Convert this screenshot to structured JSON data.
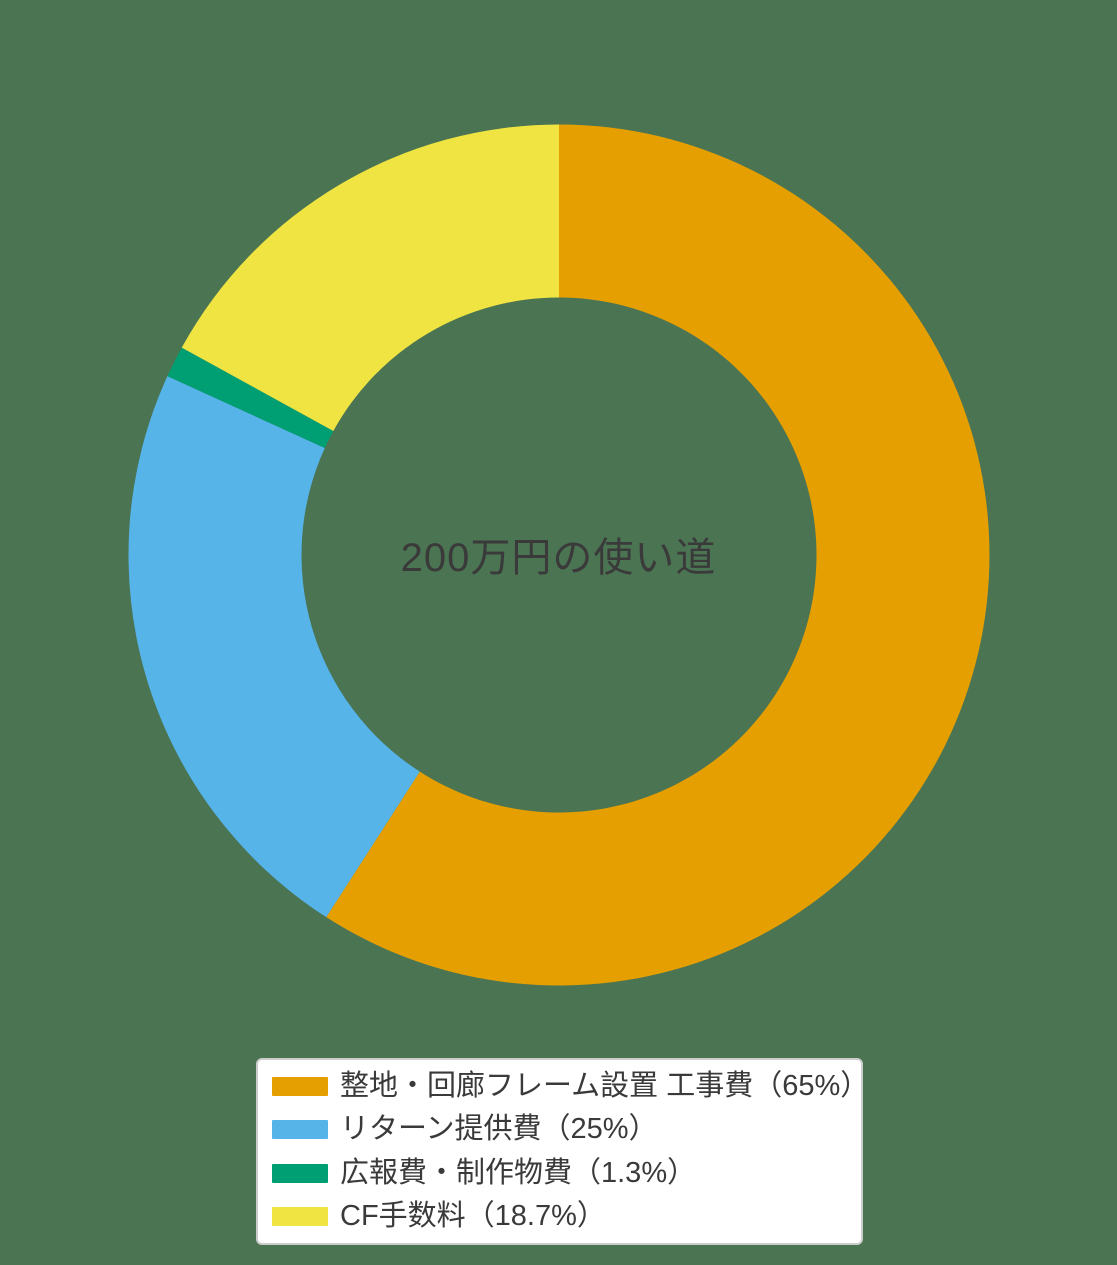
{
  "background_color": "#4b7453",
  "chart_data": {
    "type": "pie",
    "subtype": "donut",
    "title": "200万円の使い道",
    "title_position": "center-of-donut",
    "start_angle": "12-oclock",
    "direction": "clockwise",
    "inner_radius_ratio": 0.6,
    "categories": [
      "整地・回廊フレーム設置 工事費",
      "リターン提供費",
      "広報費・制作物費",
      "CF手数料"
    ],
    "values": [
      65,
      25,
      1.3,
      18.7
    ],
    "value_labels": [
      "65%",
      "25%",
      "1.3%",
      "18.7%"
    ],
    "colors": [
      "#e69f00",
      "#56b4e9",
      "#009e73",
      "#f0e442"
    ],
    "text_color": "#3a3a3a",
    "legend": {
      "position": "bottom-center",
      "background": "#ffffff",
      "border_color": "#cdcdcd",
      "items": [
        {
          "label": "整地・回廊フレーム設置 工事費（65%）",
          "color": "#e69f00"
        },
        {
          "label": "リターン提供費（25%）",
          "color": "#56b4e9"
        },
        {
          "label": "広報費・制作物費（1.3%）",
          "color": "#009e73"
        },
        {
          "label": "CF手数料（18.7%）",
          "color": "#f0e442"
        }
      ]
    }
  }
}
